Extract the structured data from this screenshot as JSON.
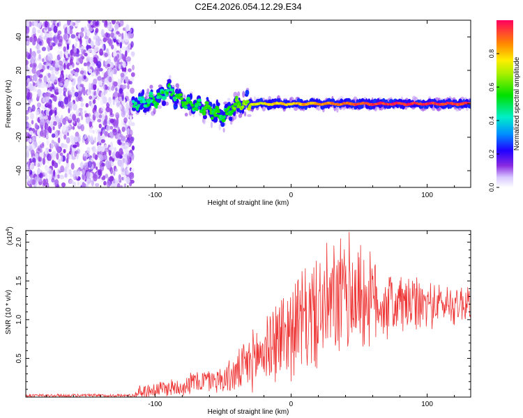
{
  "figure": {
    "title": "C2E4.2026.054.12.29.E34"
  },
  "chart_data": [
    {
      "type": "heatmap",
      "xlabel": "Height of straight line (km)",
      "ylabel": "Frequency (Hz)",
      "xlim": [
        -195,
        132
      ],
      "ylim": [
        -50,
        50
      ],
      "xticks": [
        -100,
        0,
        100
      ],
      "yticks": [
        -40,
        -20,
        0,
        20,
        40
      ],
      "xtick_labels": [
        "-100",
        "0",
        "100"
      ],
      "ytick_labels": [
        "-40",
        "-20",
        "0",
        "20",
        "40"
      ],
      "colorbar": {
        "label": "Normalized spectral amplitude",
        "range": [
          0,
          1
        ],
        "ticks": [
          0.0,
          0.2,
          0.4,
          0.6,
          0.8
        ],
        "tick_labels": [
          "0.0",
          "0.2",
          "0.4",
          "0.6",
          "0.8"
        ]
      },
      "regions": [
        {
          "name": "noise",
          "x_range": [
            -195,
            -116
          ],
          "freq_range": [
            -50,
            50
          ],
          "amplitude": 0.15
        },
        {
          "name": "signal-band",
          "x_range": [
            -116,
            132
          ],
          "center_freq": 0,
          "amplitude": 0.95
        }
      ],
      "signal_trace": {
        "x": [
          -116,
          -100,
          -90,
          -80,
          -70,
          -60,
          -50,
          -40,
          -30,
          -20,
          0,
          20,
          40,
          60,
          80,
          100,
          132
        ],
        "freq": [
          0,
          2,
          8,
          2,
          -2,
          -3,
          -8,
          0,
          0,
          0,
          0,
          0,
          0,
          0,
          0,
          0,
          0
        ],
        "amplitude": [
          0.45,
          0.5,
          0.5,
          0.55,
          0.5,
          0.55,
          0.5,
          0.6,
          0.7,
          0.75,
          0.8,
          0.85,
          0.9,
          0.95,
          0.95,
          0.95,
          0.95
        ]
      }
    },
    {
      "type": "line",
      "xlabel": "Height of straight line (km)",
      "ylabel": "SNR (10 * v/v)",
      "yscale_label": "(x10",
      "yscale_exp": "4",
      "yscale_close": ")",
      "xlim": [
        -195,
        132
      ],
      "ylim": [
        0,
        2.15
      ],
      "xticks": [
        -100,
        0,
        100
      ],
      "yticks": [
        0.5,
        1.0,
        1.5,
        2.0
      ],
      "xtick_labels": [
        "-100",
        "0",
        "100"
      ],
      "ytick_labels": [
        "0.5",
        "1.0",
        "1.5",
        "2.0"
      ],
      "color": "#ee3333",
      "series": [
        {
          "name": "SNR",
          "envelope_x": [
            -195,
            -115,
            -113,
            -100,
            -80,
            -70,
            -60,
            -50,
            -40,
            -30,
            -20,
            -10,
            0,
            10,
            20,
            30,
            40,
            45,
            50,
            60,
            70,
            80,
            90,
            100,
            110,
            120,
            132
          ],
          "envelope_mid": [
            0.02,
            0.02,
            0.06,
            0.1,
            0.14,
            0.2,
            0.22,
            0.23,
            0.3,
            0.45,
            0.6,
            0.75,
            0.9,
            1.0,
            1.1,
            1.2,
            1.3,
            1.35,
            1.3,
            1.25,
            1.2,
            1.2,
            1.18,
            1.2,
            1.2,
            1.2,
            1.22
          ],
          "envelope_amp": [
            0.02,
            0.02,
            0.08,
            0.1,
            0.12,
            0.15,
            0.15,
            0.17,
            0.25,
            0.35,
            0.45,
            0.55,
            0.6,
            0.65,
            0.7,
            0.75,
            0.75,
            0.8,
            0.7,
            0.55,
            0.45,
            0.4,
            0.35,
            0.3,
            0.25,
            0.25,
            0.25
          ]
        }
      ]
    }
  ]
}
